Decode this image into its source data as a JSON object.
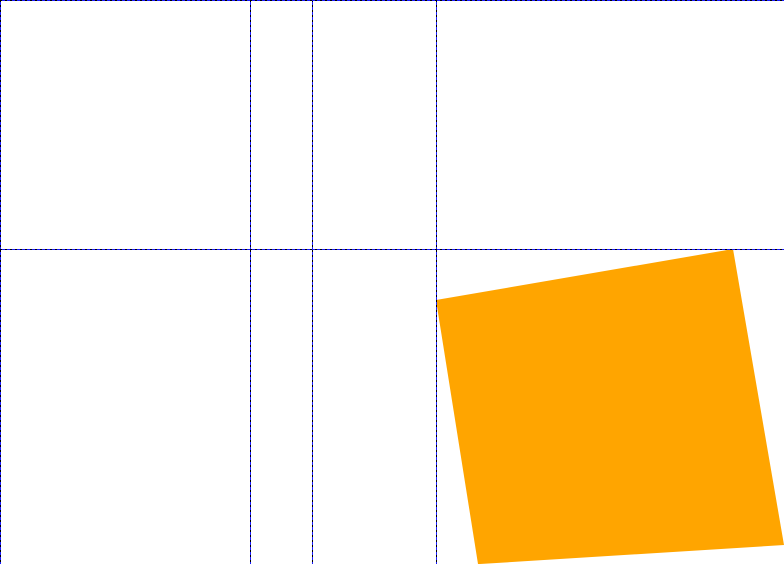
{
  "canvas": {
    "background": "#ffffff"
  },
  "guides": {
    "color_primary": "#1a1aff",
    "color_dash": "#000000"
  },
  "shape": {
    "kind": "rotated-square",
    "fill": "#ffa500"
  }
}
